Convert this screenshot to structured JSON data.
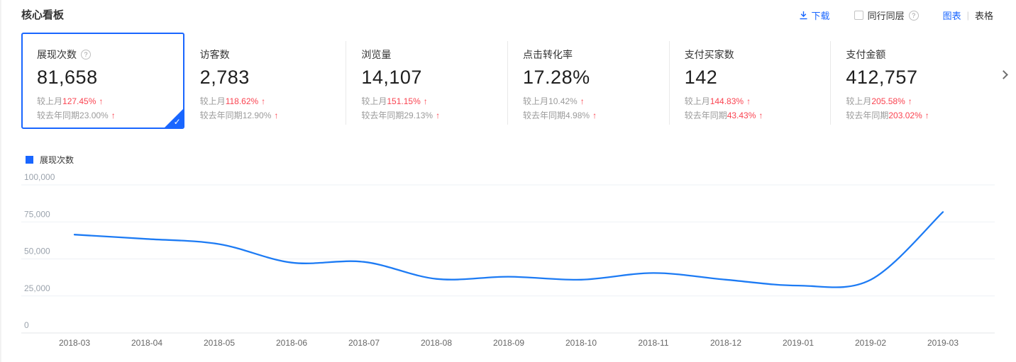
{
  "page": {
    "title": "核心看板"
  },
  "toolbar": {
    "download_label": "下载",
    "peer_label": "同行同层",
    "chart_label": "图表",
    "view_divider": "|",
    "table_label": "表格"
  },
  "icons": {
    "help": "?",
    "check": "✓",
    "arrow_up": "↑"
  },
  "cards": [
    {
      "id": "impressions",
      "title": "展现次数",
      "value": "81,658",
      "selected": true,
      "has_help": true,
      "mom_label": "较上月",
      "mom_value": "127.45%",
      "mom_color": "red",
      "yoy_label": "较去年同期",
      "yoy_value": "23.00%",
      "yoy_color": "gray"
    },
    {
      "id": "visitors",
      "title": "访客数",
      "value": "2,783",
      "selected": false,
      "has_help": false,
      "mom_label": "较上月",
      "mom_value": "118.62%",
      "mom_color": "red",
      "yoy_label": "较去年同期",
      "yoy_value": "12.90%",
      "yoy_color": "gray"
    },
    {
      "id": "pageviews",
      "title": "浏览量",
      "value": "14,107",
      "selected": false,
      "has_help": false,
      "mom_label": "较上月",
      "mom_value": "151.15%",
      "mom_color": "red",
      "yoy_label": "较去年同期",
      "yoy_value": "29.13%",
      "yoy_color": "gray"
    },
    {
      "id": "click-conversion-rate",
      "title": "点击转化率",
      "value": "17.28%",
      "selected": false,
      "has_help": false,
      "mom_label": "较上月",
      "mom_value": "10.42%",
      "mom_color": "gray",
      "yoy_label": "较去年同期",
      "yoy_value": "4.98%",
      "yoy_color": "gray"
    },
    {
      "id": "paying-buyers",
      "title": "支付买家数",
      "value": "142",
      "selected": false,
      "has_help": false,
      "mom_label": "较上月",
      "mom_value": "144.83%",
      "mom_color": "red",
      "yoy_label": "较去年同期",
      "yoy_value": "43.43%",
      "yoy_color": "red"
    },
    {
      "id": "payment-amount",
      "title": "支付金额",
      "value": "412,757",
      "selected": false,
      "has_help": false,
      "mom_label": "较上月",
      "mom_value": "205.58%",
      "mom_color": "red",
      "yoy_label": "较去年同期",
      "yoy_value": "203.02%",
      "yoy_color": "red"
    }
  ],
  "chart_data": {
    "type": "line",
    "title": "",
    "legend": [
      "展现次数"
    ],
    "legend_position": "top-left",
    "x": [
      "2018-03",
      "2018-04",
      "2018-05",
      "2018-06",
      "2018-07",
      "2018-08",
      "2018-09",
      "2018-10",
      "2018-11",
      "2018-12",
      "2019-01",
      "2019-02",
      "2019-03"
    ],
    "series": [
      {
        "name": "展现次数",
        "values": [
          66400,
          63500,
          60000,
          47500,
          48000,
          36500,
          38000,
          36000,
          40500,
          36000,
          32000,
          35900,
          81658
        ]
      }
    ],
    "ylim": [
      0,
      100000
    ],
    "y_ticks": [
      0,
      25000,
      50000,
      75000,
      100000
    ],
    "y_tick_labels": [
      "0",
      "25,000",
      "50,000",
      "75,000",
      "100,000"
    ],
    "grid": true,
    "line_color": "#1d7bf4"
  },
  "colors": {
    "accent_blue": "#1966ff",
    "line_blue": "#1d7bf4",
    "rise_red": "#fa4350",
    "gridline": "#eef1f5",
    "axis_line": "#e3e6ea",
    "y_tick_color": "#9ba3ad",
    "x_tick_color": "#666666"
  }
}
